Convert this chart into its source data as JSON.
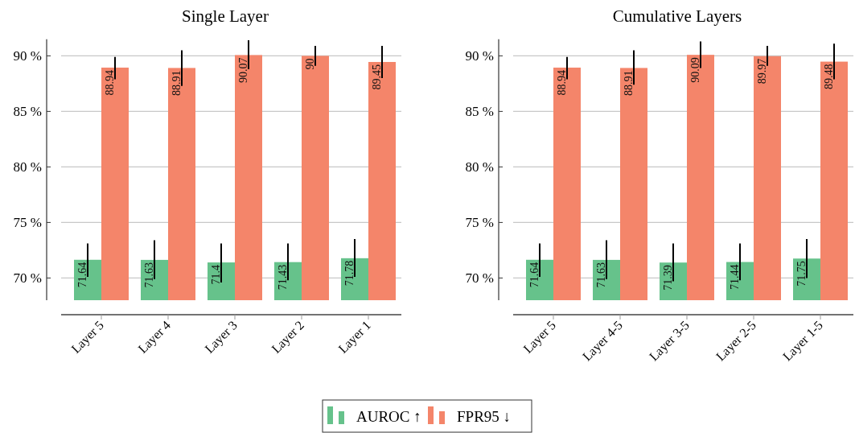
{
  "chart_data": [
    {
      "type": "bar",
      "title": "Single Layer",
      "categories": [
        "Layer 5",
        "Layer 4",
        "Layer 3",
        "Layer 2",
        "Layer 1"
      ],
      "series": [
        {
          "name": "AUROC ↑",
          "color": "#66c28b",
          "values": [
            71.64,
            71.63,
            71.4,
            71.43,
            71.78
          ],
          "errors": [
            [
              70.1,
              73.1
            ],
            [
              69.9,
              73.4
            ],
            [
              69.6,
              73.1
            ],
            [
              69.8,
              73.1
            ],
            [
              70.1,
              73.5
            ]
          ]
        },
        {
          "name": "FPR95 ↓",
          "color": "#f4856a",
          "values": [
            88.94,
            88.91,
            90.07,
            90,
            89.45
          ],
          "errors": [
            [
              87.9,
              89.9
            ],
            [
              87.3,
              90.5
            ],
            [
              88.8,
              91.4
            ],
            [
              89.1,
              90.9
            ],
            [
              88.0,
              90.9
            ]
          ]
        }
      ],
      "ylim": [
        68,
        91.5
      ],
      "yticks": [
        {
          "value": 70,
          "label": "70 %"
        },
        {
          "value": 75,
          "label": "75 %"
        },
        {
          "value": 80,
          "label": "80 %"
        },
        {
          "value": 85,
          "label": "85 %"
        },
        {
          "value": 90,
          "label": "90 %"
        }
      ],
      "grid": "y",
      "data_labels": true,
      "legend": "bottom"
    },
    {
      "type": "bar",
      "title": "Cumulative Layers",
      "categories": [
        "Layer 5",
        "Layer 4-5",
        "Layer 3-5",
        "Layer 2-5",
        "Layer 1-5"
      ],
      "series": [
        {
          "color": "#66c28b",
          "values": [
            71.64,
            71.63,
            71.39,
            71.44,
            71.75
          ],
          "errors": [
            [
              70.1,
              73.1
            ],
            [
              69.9,
              73.4
            ],
            [
              69.7,
              73.1
            ],
            [
              69.8,
              73.1
            ],
            [
              70.0,
              73.5
            ]
          ]
        },
        {
          "color": "#f4856a",
          "values": [
            88.94,
            88.91,
            90.09,
            89.97,
            89.48
          ],
          "errors": [
            [
              87.9,
              89.9
            ],
            [
              87.4,
              90.5
            ],
            [
              88.9,
              91.3
            ],
            [
              89.1,
              90.9
            ],
            [
              87.9,
              91.1
            ]
          ]
        }
      ],
      "ylim": [
        68,
        91.5
      ],
      "yticks": [
        {
          "value": 70,
          "label": "70 %"
        },
        {
          "value": 75,
          "label": "75 %"
        },
        {
          "value": 80,
          "label": "80 %"
        },
        {
          "value": 85,
          "label": "85 %"
        },
        {
          "value": 90,
          "label": "90 %"
        }
      ],
      "grid": "y",
      "data_labels": true
    }
  ]
}
